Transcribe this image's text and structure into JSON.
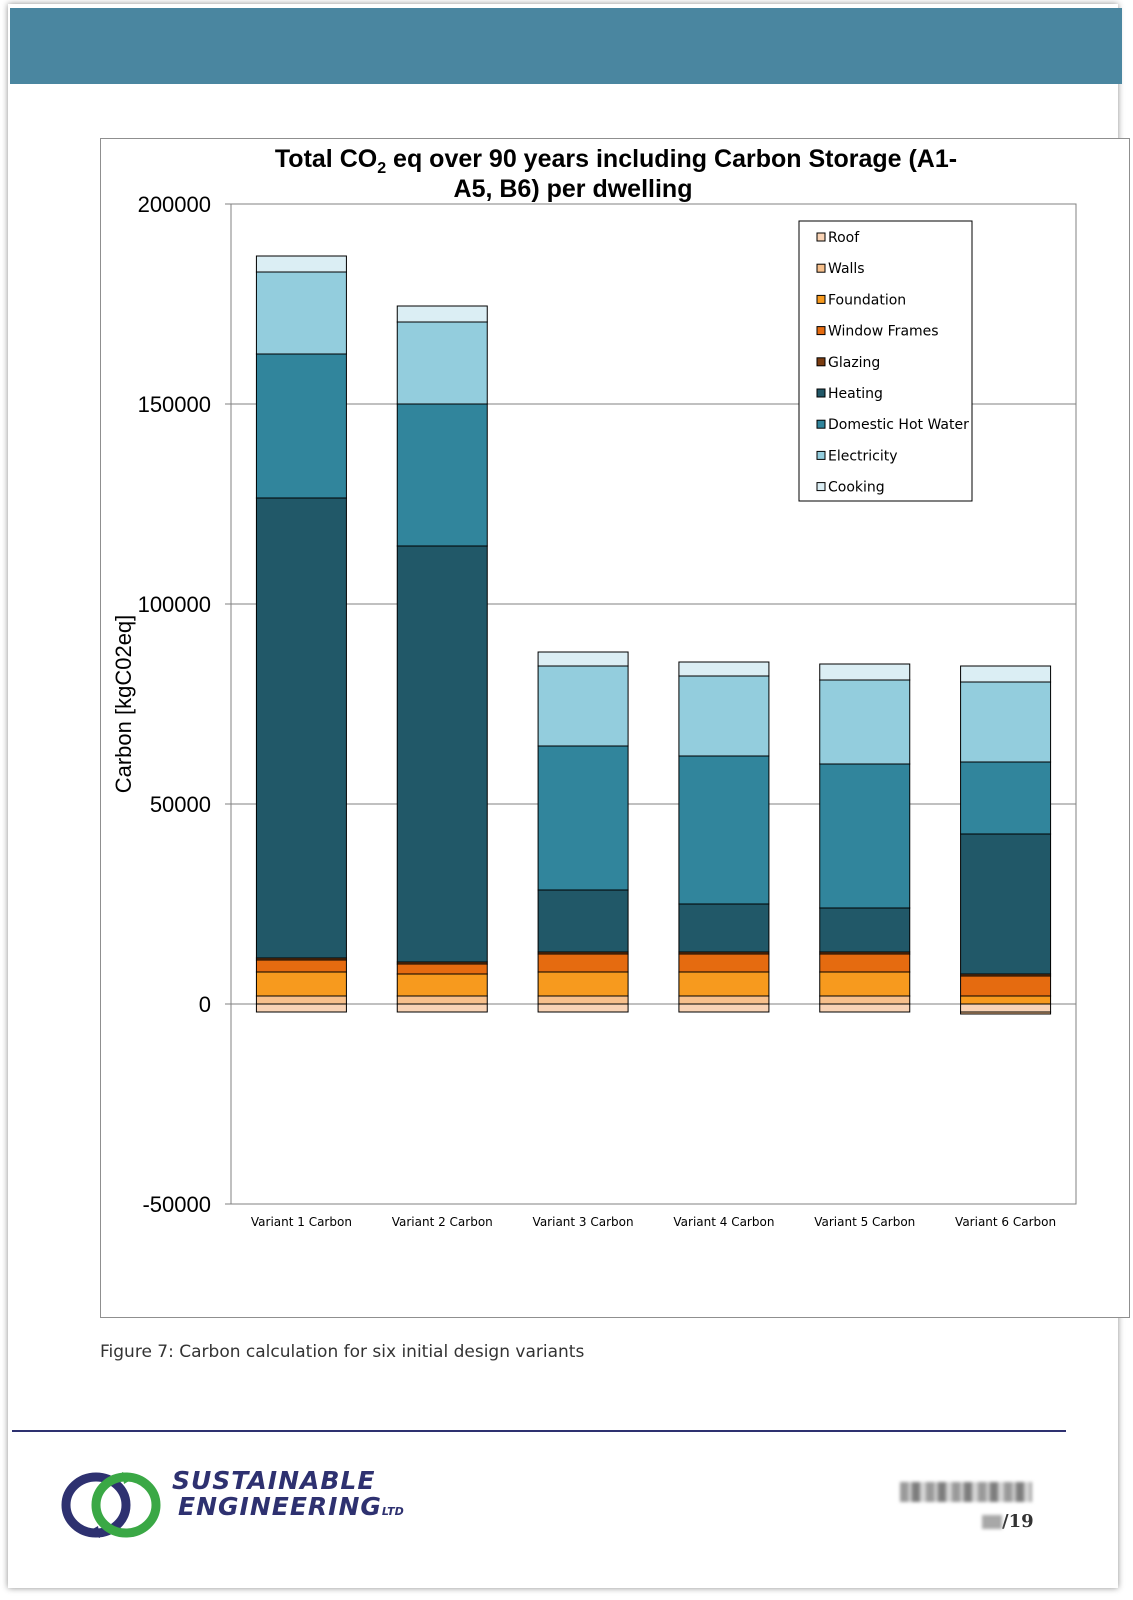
{
  "chart_data": {
    "type": "bar",
    "stacked": true,
    "title": "Total CO2 eq over 90 years including Carbon Storage (A1-A5, B6) per dwelling",
    "title_line1_pre": "Total CO",
    "title_sub": "2",
    "title_line1_post": " eq over 90 years including Carbon Storage (A1-",
    "title_line2": "A5, B6) per dwelling",
    "xlabel": "",
    "ylabel": "Carbon [kgC02eq]",
    "ylim": [
      -50000,
      200000
    ],
    "yticks": [
      "200000",
      "150000",
      "100000",
      "50000",
      "0",
      "-50000"
    ],
    "ytick_values": [
      200000,
      150000,
      100000,
      50000,
      0,
      -50000
    ],
    "grid": true,
    "legend_position": "top-right",
    "categories": [
      "Variant 1 Carbon",
      "Variant 2 Carbon",
      "Variant 3 Carbon",
      "Variant 4 Carbon",
      "Variant 5 Carbon",
      "Variant 6 Carbon"
    ],
    "series": [
      {
        "name": "Roof",
        "color": "#f9d3b5",
        "values": [
          -2000,
          -2000,
          -2000,
          -2000,
          -2000,
          -2000
        ]
      },
      {
        "name": "Walls",
        "color": "#f7c08c",
        "values": [
          2000,
          2000,
          2000,
          2000,
          2000,
          -500
        ]
      },
      {
        "name": "Foundation",
        "color": "#f79a1e",
        "values": [
          6000,
          5500,
          6000,
          6000,
          6000,
          2000
        ]
      },
      {
        "name": "Window Frames",
        "color": "#e56b10",
        "values": [
          3000,
          2500,
          4500,
          4500,
          4500,
          5000
        ]
      },
      {
        "name": "Glazing",
        "color": "#7a3c10",
        "values": [
          500,
          500,
          500,
          500,
          500,
          500
        ]
      },
      {
        "name": "Heating",
        "color": "#215868",
        "values": [
          115000,
          104000,
          15500,
          12000,
          11000,
          35000
        ]
      },
      {
        "name": "Domestic Hot Water",
        "color": "#31859c",
        "values": [
          36000,
          35500,
          36000,
          37000,
          36000,
          18000
        ]
      },
      {
        "name": "Electricity",
        "color": "#93cddd",
        "values": [
          20500,
          20500,
          20000,
          20000,
          21000,
          20000
        ]
      },
      {
        "name": "Cooking",
        "color": "#dbeef4",
        "values": [
          4000,
          4000,
          3500,
          3500,
          4000,
          4000
        ]
      }
    ]
  },
  "caption": "Figure 7: Carbon calculation for six initial design variants",
  "logo": {
    "line1": "SUSTAINABLE",
    "line2": "ENGINEERING",
    "suffix": "LTD"
  },
  "page_number": "/19"
}
